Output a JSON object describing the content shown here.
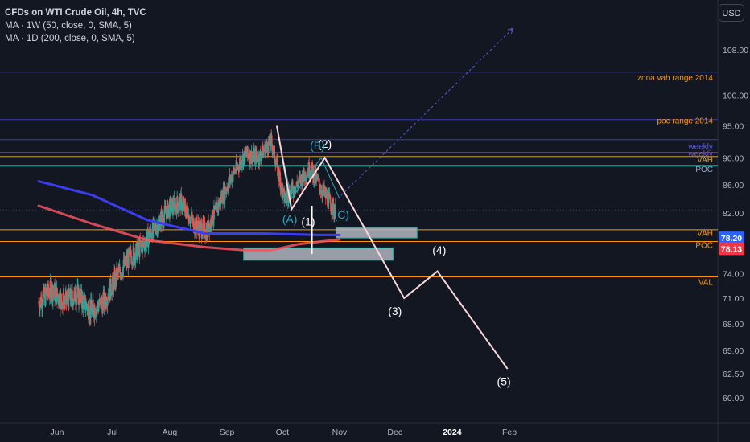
{
  "header": {
    "title": "CFDs on WTI Crude Oil, 4h, TVC",
    "indicators": [
      "MA · 1W (50, close, 0, SMA, 5)",
      "MA · 1D (200, close, 0, SMA, 5)"
    ],
    "currency_button": "USD"
  },
  "chart_data": {
    "type": "candlestick",
    "symbol": "CFDs on WTI Crude Oil",
    "interval": "4h",
    "source": "TVC",
    "x_tick_labels": [
      "Jun",
      "Jul",
      "Aug",
      "Sep",
      "Oct",
      "Nov",
      "Dec",
      "2024",
      "Feb"
    ],
    "y_tick_values": [
      108,
      100,
      95,
      90,
      86,
      82,
      74,
      71,
      68,
      65,
      62.5,
      60
    ],
    "y_tick_labels": [
      "108.00",
      "100.00",
      "95.00",
      "90.00",
      "86.00",
      "82.00",
      "74.00",
      "71.00",
      "68.00",
      "65.00",
      "62.50",
      "60.00"
    ],
    "ylim": [
      58.5,
      118
    ],
    "y_scale": "log",
    "grid": false,
    "ohlc_waypoints": [
      {
        "date": "2023-05-22",
        "close": 70.5
      },
      {
        "date": "2023-05-29",
        "close": 72.0
      },
      {
        "date": "2023-06-05",
        "close": 70.5
      },
      {
        "date": "2023-06-12",
        "close": 71.5
      },
      {
        "date": "2023-06-19",
        "close": 69.5
      },
      {
        "date": "2023-06-26",
        "close": 70.5
      },
      {
        "date": "2023-07-03",
        "close": 73.5
      },
      {
        "date": "2023-07-10",
        "close": 76.0
      },
      {
        "date": "2023-07-17",
        "close": 77.5
      },
      {
        "date": "2023-07-24",
        "close": 80.0
      },
      {
        "date": "2023-07-31",
        "close": 82.5
      },
      {
        "date": "2023-08-07",
        "close": 83.5
      },
      {
        "date": "2023-08-14",
        "close": 80.5
      },
      {
        "date": "2023-08-21",
        "close": 79.5
      },
      {
        "date": "2023-08-28",
        "close": 83.5
      },
      {
        "date": "2023-09-04",
        "close": 87.5
      },
      {
        "date": "2023-09-11",
        "close": 90.5
      },
      {
        "date": "2023-09-18",
        "close": 90.0
      },
      {
        "date": "2023-09-25",
        "close": 92.5
      },
      {
        "date": "2023-10-02",
        "close": 84.0
      },
      {
        "date": "2023-10-09",
        "close": 86.0
      },
      {
        "date": "2023-10-16",
        "close": 88.5
      },
      {
        "date": "2023-10-23",
        "close": 85.0
      },
      {
        "date": "2023-10-30",
        "close": 82.0
      }
    ],
    "moving_averages": [
      {
        "name": "MA · 1W (50, close, 0, SMA, 5)",
        "color": "#3c3cf0",
        "points": [
          [
            "2023-05-22",
            86.5
          ],
          [
            "2023-06-20",
            84.5
          ],
          [
            "2023-07-20",
            81.0
          ],
          [
            "2023-08-20",
            79.2
          ],
          [
            "2023-09-20",
            79.2
          ],
          [
            "2023-10-20",
            79.0
          ],
          [
            "2023-11-01",
            79.0
          ]
        ]
      },
      {
        "name": "MA · 1D (200, close, 0, SMA, 5)",
        "color": "#f7525f",
        "points": [
          [
            "2023-05-22",
            83.0
          ],
          [
            "2023-06-20",
            80.5
          ],
          [
            "2023-07-20",
            78.3
          ],
          [
            "2023-08-20",
            77.4
          ],
          [
            "2023-09-10",
            77.0
          ],
          [
            "2023-09-25",
            77.0
          ],
          [
            "2023-10-10",
            77.8
          ],
          [
            "2023-11-01",
            78.4
          ]
        ]
      }
    ],
    "horizontal_levels": [
      {
        "price": 104.0,
        "color": "#3a3ab0"
      },
      {
        "price": 96.0,
        "color": "#3a3ab0"
      },
      {
        "price": 92.8,
        "color": "#3a3ab0"
      },
      {
        "price": 90.8,
        "color": "#7b4fbf"
      },
      {
        "price": 90.2,
        "color": "#c8a040"
      },
      {
        "price": 88.8,
        "color": "#26a69a"
      },
      {
        "price": 82.4,
        "color": "#3a3ab0",
        "dotted": true
      },
      {
        "price": 79.7,
        "color": "#ff9800"
      },
      {
        "price": 78.13,
        "color": "#ff9800"
      },
      {
        "price": 73.6,
        "color": "#ff9800"
      }
    ],
    "level_labels": [
      {
        "text": "zona vah range 2014",
        "price": 103.0,
        "color": "#ff9800"
      },
      {
        "text": "poc range 2014",
        "price": 95.8,
        "color": "#ff9800"
      },
      {
        "text": "weekly",
        "price": 91.7,
        "color": "#5b5bd6"
      },
      {
        "text": "weekly",
        "price": 90.6,
        "color": "#7b4fbf"
      },
      {
        "text": "VAH",
        "price": 89.7,
        "color": "#c8a040"
      },
      {
        "text": "POC",
        "price": 88.2,
        "color": "#9ba7d0"
      },
      {
        "text": "VAH",
        "price": 79.2,
        "color": "#ff9800"
      },
      {
        "text": "POC",
        "price": 77.6,
        "color": "#ff9800"
      },
      {
        "text": "VAL",
        "price": 72.9,
        "color": "#ff9800"
      }
    ],
    "price_badges": [
      {
        "text": "78.20",
        "price": 78.6,
        "color": "#2962ff"
      },
      {
        "text": "78.13",
        "price": 77.2,
        "color": "#f23645"
      }
    ],
    "boxes": [
      {
        "from": "2023-10-30",
        "to": "2023-12-13",
        "top": 80.0,
        "bottom": 78.6,
        "fill": "#b2b5be"
      },
      {
        "from": "2023-09-10",
        "to": "2023-11-30",
        "top": 77.3,
        "bottom": 75.7,
        "fill": "#b2b5be"
      }
    ],
    "elliott_wave": [
      {
        "date": "2023-09-28",
        "price": 95.0
      },
      {
        "date": "2023-10-06",
        "price": 82.5
      },
      {
        "date": "2023-10-24",
        "price": 90.0
      },
      {
        "date": "2023-12-06",
        "price": 71.0
      },
      {
        "date": "2023-12-24",
        "price": 74.3
      },
      {
        "date": "2024-01-31",
        "price": 63.0
      }
    ],
    "wave_labels": [
      {
        "text": "(1)",
        "date": "2023-10-15",
        "price": 80.3,
        "color": "#ffffff"
      },
      {
        "text": "(2)",
        "date": "2023-10-24",
        "price": 91.5,
        "color": "#ffffff"
      },
      {
        "text": "(3)",
        "date": "2023-12-01",
        "price": 69.0,
        "color": "#ffffff"
      },
      {
        "text": "(4)",
        "date": "2023-12-25",
        "price": 76.5,
        "color": "#ffffff"
      },
      {
        "text": "(5)",
        "date": "2024-01-29",
        "price": 61.3,
        "color": "#ffffff"
      },
      {
        "text": "(A)",
        "date": "2023-10-05",
        "price": 80.6,
        "color": "#2aa5b8"
      },
      {
        "text": "(B)",
        "date": "2023-10-20",
        "price": 91.3,
        "color": "#2aa5b8"
      },
      {
        "text": "(C)",
        "date": "2023-11-02",
        "price": 81.2,
        "color": "#2aa5b8"
      }
    ],
    "abc_correction": [
      {
        "date": "2023-09-28",
        "price": 94.5
      },
      {
        "date": "2023-10-06",
        "price": 84.0
      },
      {
        "date": "2023-10-22",
        "price": 90.0
      },
      {
        "date": "2023-11-01",
        "price": 84.0
      }
    ],
    "dashed_projection": [
      {
        "date": "2023-10-31",
        "price": 84.0
      },
      {
        "date": "2024-02-03",
        "price": 112.0
      }
    ],
    "vertical_marker": {
      "date": "2023-10-17",
      "from": 83.0,
      "to": 76.5
    },
    "colors": {
      "up": "#26a69a",
      "down": "#ef5350",
      "background": "#131722",
      "axis_text": "#b2b5be"
    }
  }
}
